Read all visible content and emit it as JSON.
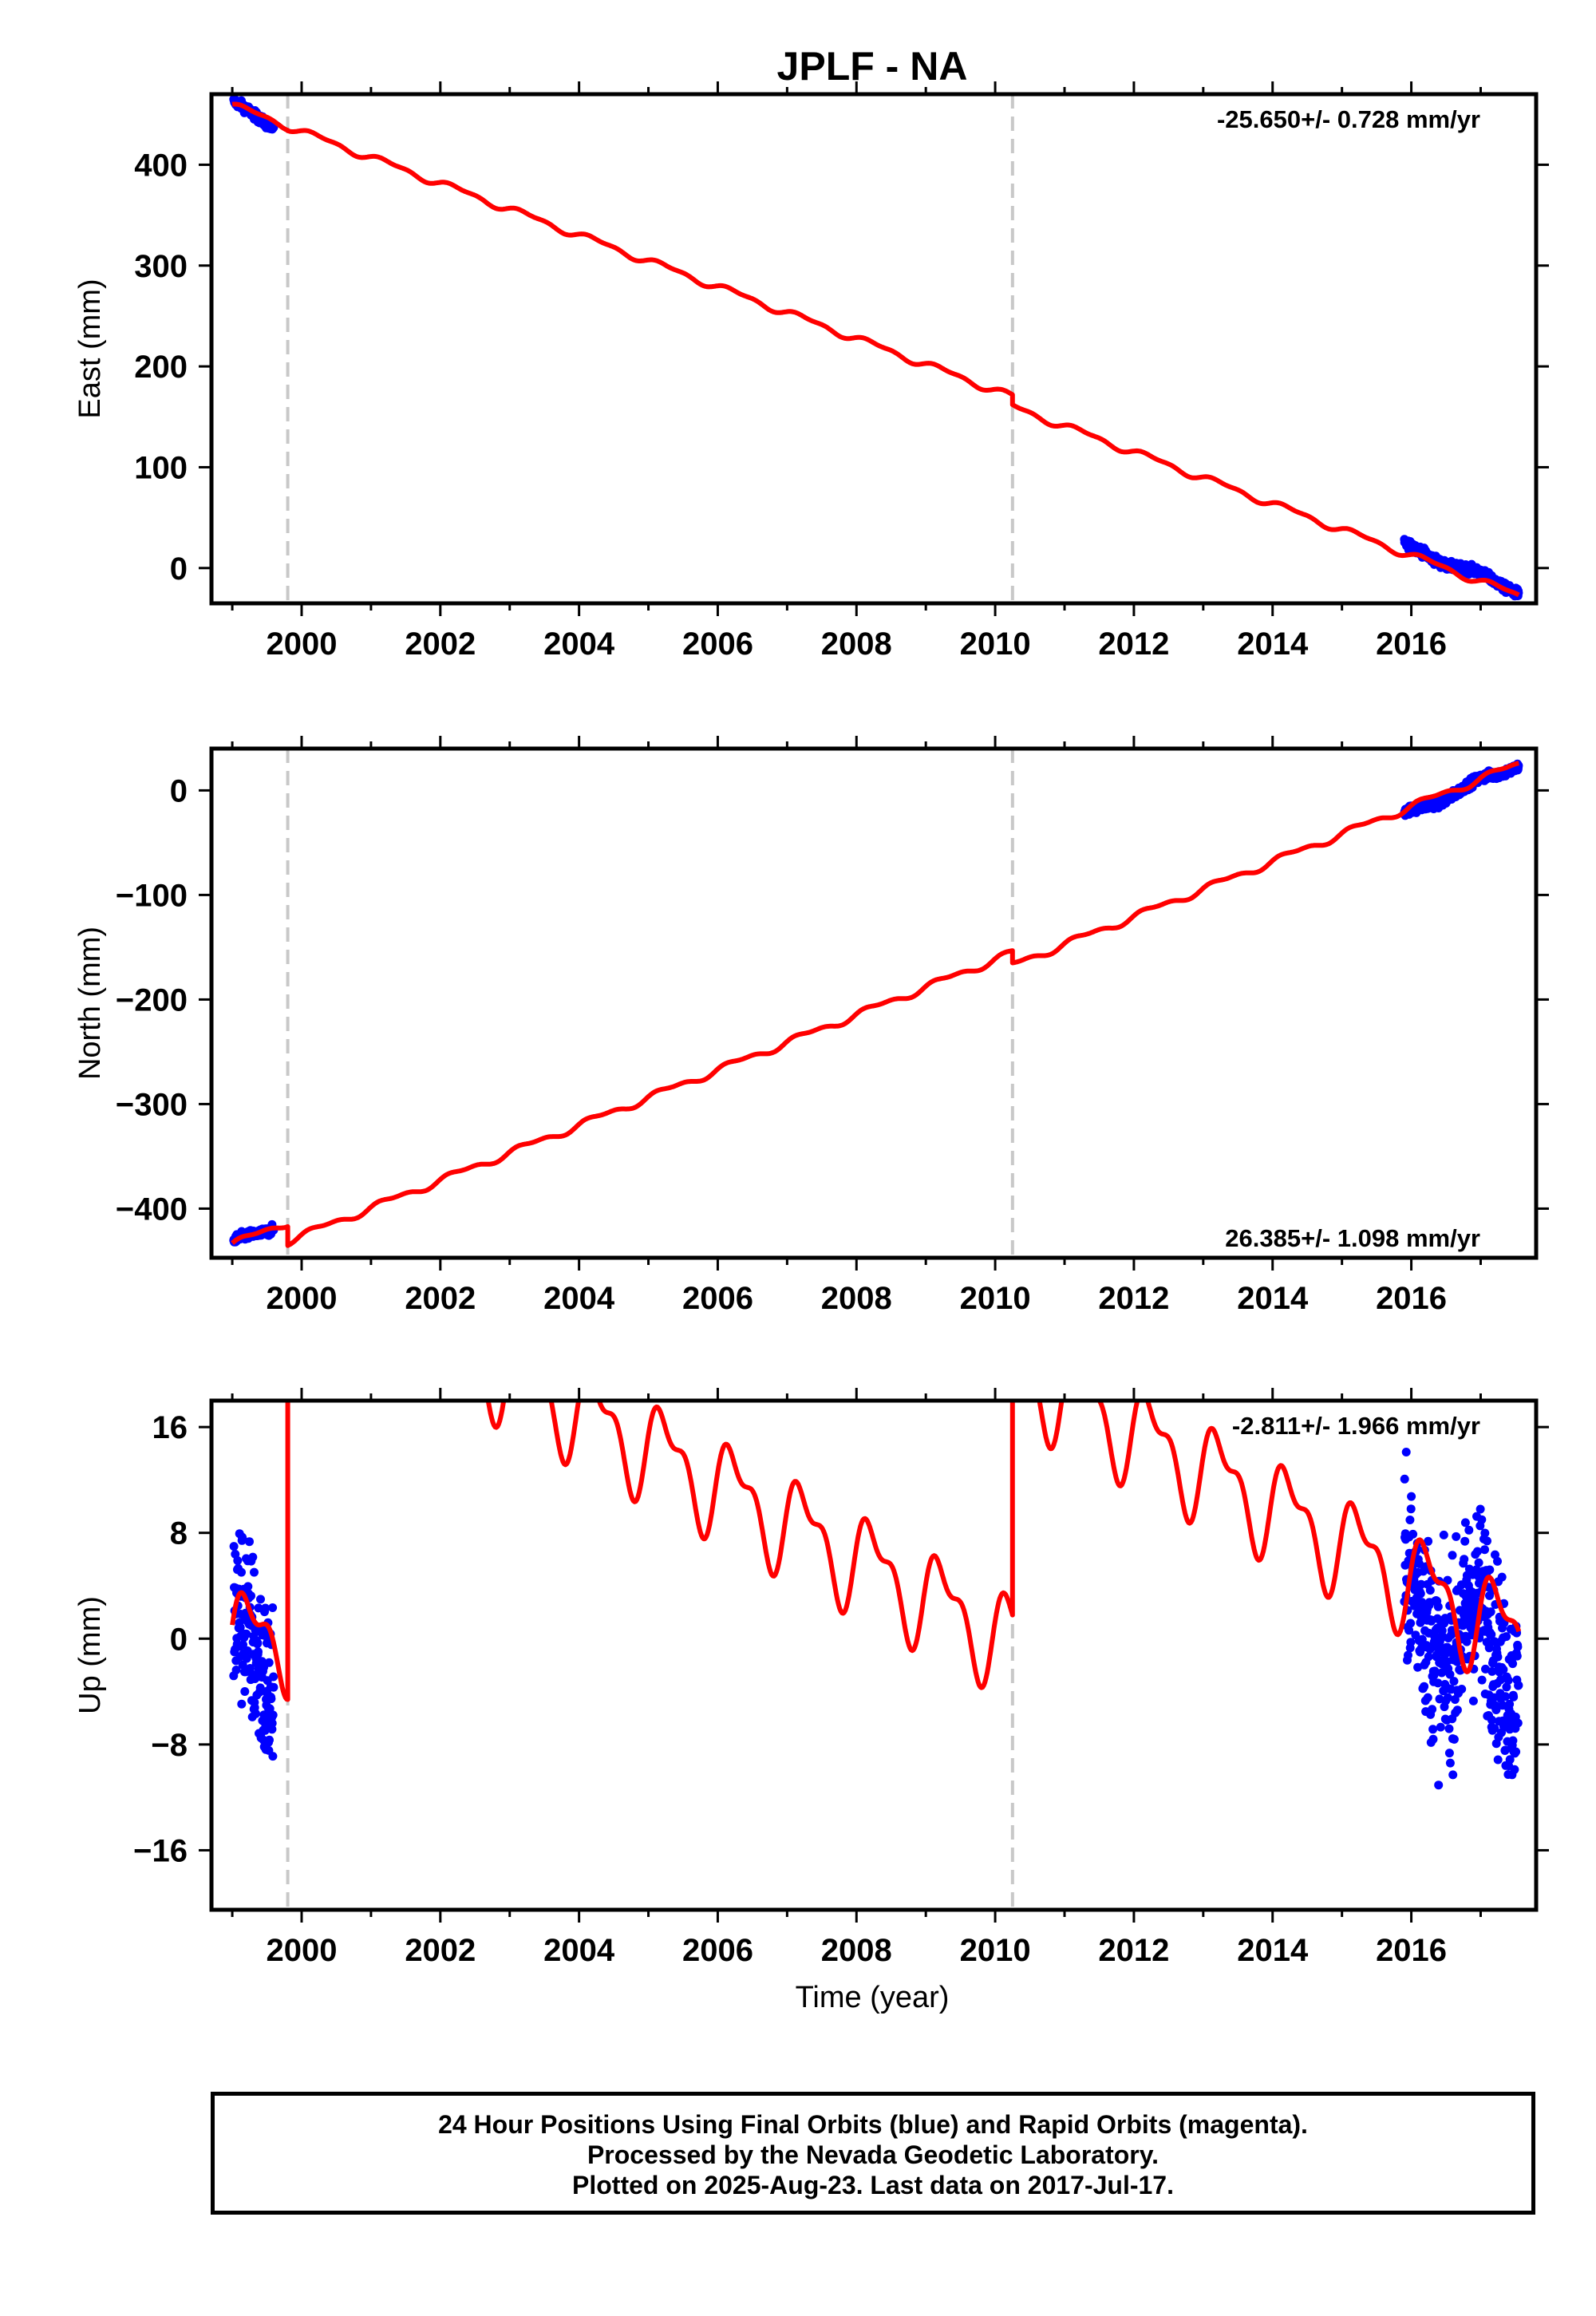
{
  "chart_data": [
    {
      "type": "scatter",
      "title": "JPLF - NA",
      "xlabel": "",
      "ylabel": "East (mm)",
      "xlim": [
        1998.7,
        2017.8
      ],
      "ylim": [
        -35,
        470
      ],
      "xticks": [
        2000,
        2002,
        2004,
        2006,
        2008,
        2010,
        2012,
        2014,
        2016
      ],
      "yticks": [
        0,
        100,
        200,
        300,
        400
      ],
      "ytick_labels": [
        "0",
        "100",
        "200",
        "300",
        "400"
      ],
      "rate_text": "-25.650+/- 0.728 mm/yr",
      "rate_position": "top-right",
      "offsets": [
        1999.8,
        2010.25
      ],
      "model": {
        "name": "Model",
        "color": "#ff0000",
        "rate": -25.65,
        "segments": [
          {
            "from": 1999.0,
            "to": 1999.8,
            "anchor": 459,
            "rate": -25.65
          },
          {
            "from": 1999.8,
            "to": 2010.25,
            "anchor": 438,
            "rate": -25.65
          },
          {
            "from": 2010.25,
            "to": 2017.55,
            "anchor": 160,
            "rate": -25.65
          }
        ],
        "seasonal_amplitude": 3
      },
      "series": [
        {
          "name": "Final Orbits",
          "color": "#0000ff",
          "segments": [
            {
              "from": 1999.02,
              "to": 1999.6,
              "anchor": 460,
              "rate": -36,
              "noise": 3
            },
            {
              "from": 2015.9,
              "to": 2017.55,
              "anchor": 22,
              "rate": -27,
              "noise": 3
            }
          ]
        }
      ]
    },
    {
      "type": "scatter",
      "title": "",
      "xlabel": "",
      "ylabel": "North (mm)",
      "xlim": [
        1998.7,
        2017.8
      ],
      "ylim": [
        -447,
        40
      ],
      "xticks": [
        2000,
        2002,
        2004,
        2006,
        2008,
        2010,
        2012,
        2014,
        2016
      ],
      "yticks": [
        -400,
        -300,
        -200,
        -100,
        0
      ],
      "ytick_labels": [
        "−400",
        "−300",
        "−200",
        "−100",
        "0"
      ],
      "rate_text": "26.385+/- 1.098 mm/yr",
      "rate_position": "bottom-right",
      "offsets": [
        1999.8,
        2010.25
      ],
      "model": {
        "name": "Model",
        "color": "#ff0000",
        "rate": 26.385,
        "segments": [
          {
            "from": 1999.0,
            "to": 1999.8,
            "anchor": -434,
            "rate": 26.385
          },
          {
            "from": 1999.8,
            "to": 2010.25,
            "anchor": -431,
            "rate": 26.385
          },
          {
            "from": 2010.25,
            "to": 2017.55,
            "anchor": -167,
            "rate": 26.385
          }
        ],
        "seasonal_amplitude": 3
      },
      "series": [
        {
          "name": "Final Orbits",
          "color": "#0000ff",
          "segments": [
            {
              "from": 1999.02,
              "to": 1999.6,
              "anchor": -433,
              "rate": 28,
              "noise": 3
            },
            {
              "from": 2015.9,
              "to": 2017.55,
              "anchor": -24,
              "rate": 30,
              "noise": 3
            }
          ]
        }
      ]
    },
    {
      "type": "scatter",
      "title": "",
      "xlabel": "Time (year)",
      "ylabel": "Up (mm)",
      "xlim": [
        1998.7,
        2017.8
      ],
      "ylim": [
        -20.5,
        18
      ],
      "xticks": [
        2000,
        2002,
        2004,
        2006,
        2008,
        2010,
        2012,
        2014,
        2016
      ],
      "yticks": [
        -16,
        -8,
        0,
        8,
        16
      ],
      "ytick_labels": [
        "−16",
        "−8",
        "0",
        "8",
        "16"
      ],
      "rate_text": "-2.811+/- 1.966 mm/yr",
      "rate_position": "top-right",
      "offsets": [
        1999.8,
        2010.25
      ],
      "model": {
        "name": "Model",
        "color": "#ff0000",
        "rate": -2.811,
        "segments": [
          {
            "from": 1999.0,
            "to": 1999.8,
            "anchor": 0,
            "rate": 0
          },
          {
            "from": 1999.8,
            "to": 2010.25,
            "anchor": 29,
            "rate": -2.811
          },
          {
            "from": 2010.25,
            "to": 2017.55,
            "anchor": 20.5,
            "rate": -2.811
          }
        ],
        "seasonal_amplitude": 3.2
      },
      "series": [
        {
          "name": "Final Orbits",
          "color": "#0000ff",
          "segments": [
            {
              "from": 1999.02,
              "to": 1999.6,
              "anchor": -1,
              "rate": 0,
              "noise": 5
            },
            {
              "from": 2015.9,
              "to": 2017.55,
              "anchor": 2,
              "rate": -2,
              "noise": 5
            }
          ]
        }
      ]
    }
  ],
  "caption": {
    "line1": "24 Hour Positions Using Final Orbits (blue) and Rapid Orbits (magenta).",
    "line2": "Processed by the Nevada Geodetic Laboratory.",
    "line3": "Plotted on 2025-Aug-23. Last data on 2017-Jul-17."
  }
}
